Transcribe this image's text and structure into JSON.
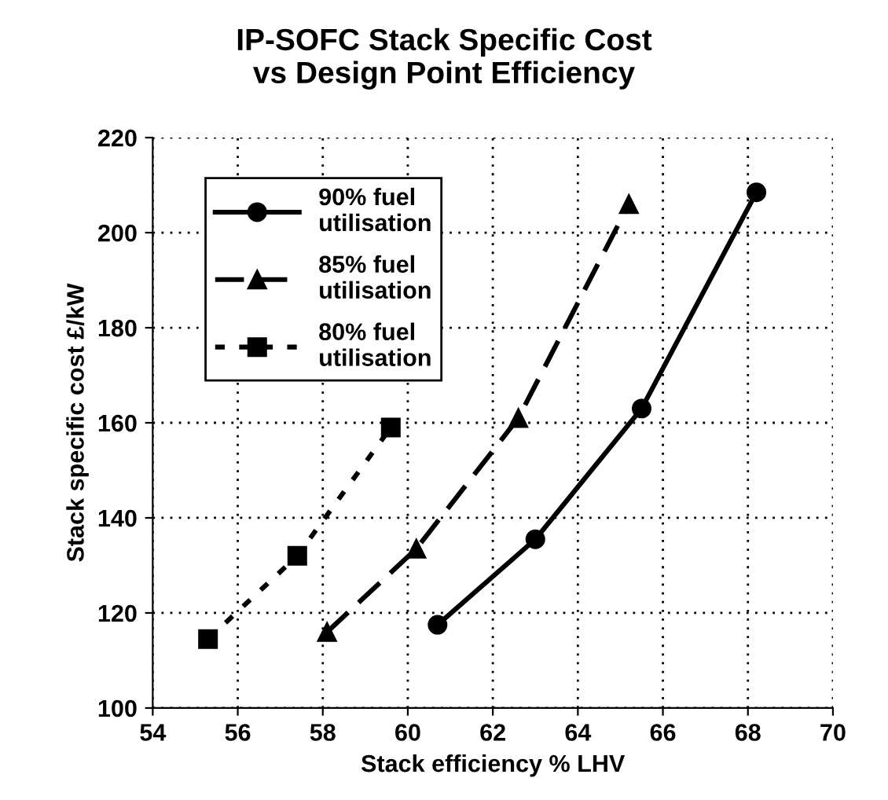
{
  "chart_data": {
    "type": "line",
    "title": "IP-SOFC Stack Specific Cost\nvs Design Point Efficiency",
    "xlabel": "Stack efficiency % LHV",
    "ylabel": "Stack specific cost £/kW",
    "xlim": [
      54,
      70
    ],
    "xticks": [
      54,
      56,
      58,
      60,
      62,
      64,
      66,
      68,
      70
    ],
    "ylim": [
      100,
      220
    ],
    "yticks": [
      100,
      120,
      140,
      160,
      180,
      200,
      220
    ],
    "grid": true,
    "legend": "top left",
    "series": [
      {
        "name": "90% fuel\nutilisation",
        "color": "#000000",
        "marker": "circle",
        "line_style": "solid",
        "x": [
          60.7,
          63.0,
          65.5,
          68.2
        ],
        "values": [
          117.5,
          135.5,
          163,
          208.5
        ]
      },
      {
        "name": "85% fuel\nutilisation",
        "color": "#000000",
        "marker": "triangle",
        "line_style": "dashed",
        "x": [
          58.1,
          60.2,
          62.6,
          65.2
        ],
        "values": [
          116,
          133.5,
          161,
          206
        ]
      },
      {
        "name": "80% fuel\nutilisation",
        "color": "#000000",
        "marker": "square",
        "line_style": "dotted",
        "x": [
          55.3,
          57.4,
          59.6
        ],
        "values": [
          114.5,
          132,
          159
        ]
      }
    ]
  }
}
